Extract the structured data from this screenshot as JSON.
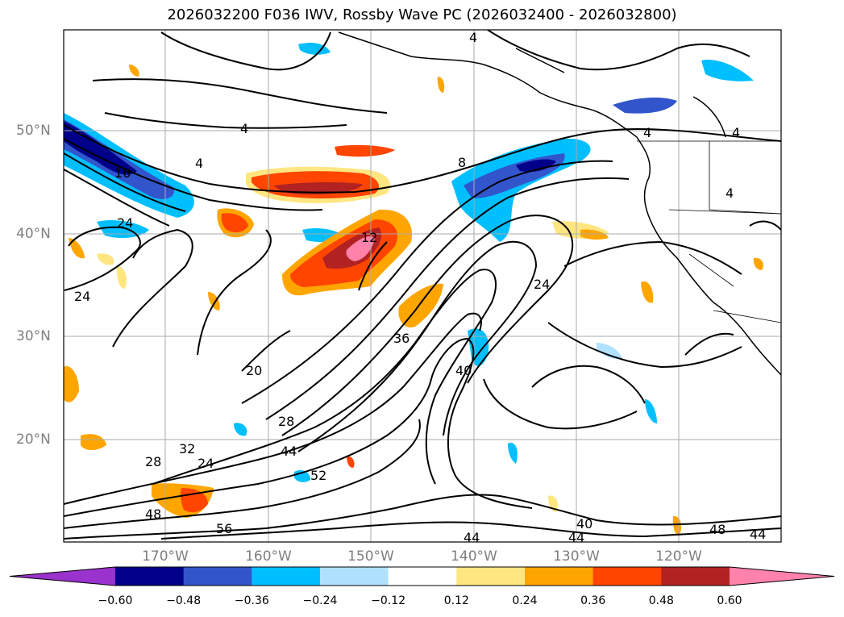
{
  "title": "2026032200 F036 IWV, Rossby Wave PC (2026032400 - 2026032800)",
  "lat_labels": [
    "50°N",
    "40°N",
    "30°N",
    "20°N"
  ],
  "lon_labels": [
    "170°W",
    "160°W",
    "150°W",
    "140°W",
    "130°W",
    "120°W"
  ],
  "colorbar": {
    "ticks": [
      "−0.60",
      "−0.48",
      "−0.36",
      "−0.24",
      "−0.12",
      "0.12",
      "0.24",
      "0.36",
      "0.48",
      "0.60"
    ],
    "colors": [
      "#9a32cd",
      "#00008b",
      "#3355cc",
      "#00bfff",
      "#b0e2ff",
      "#ffffff",
      "#ffe680",
      "#ffa500",
      "#ff4500",
      "#b22222",
      "#ff82ab"
    ]
  },
  "contour_labels": [
    "4",
    "4",
    "4",
    "4",
    "8",
    "16",
    "24",
    "24",
    "12",
    "20",
    "28",
    "32",
    "24",
    "28",
    "36",
    "44",
    "52",
    "48",
    "56",
    "24",
    "40",
    "44",
    "44",
    "40",
    "48",
    "44",
    "4",
    "4"
  ]
}
